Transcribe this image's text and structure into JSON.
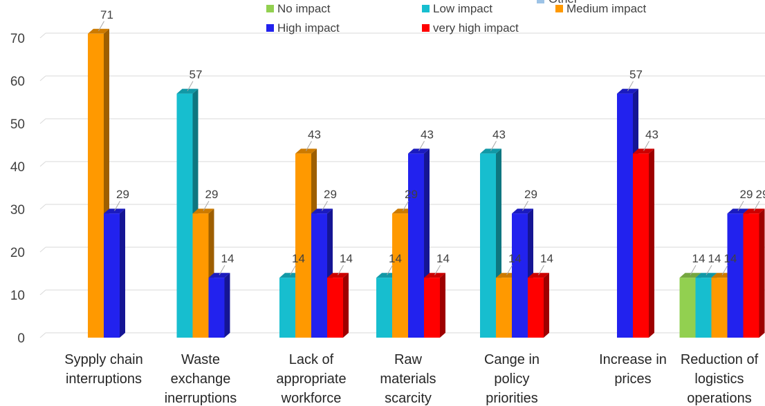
{
  "chart_data": {
    "type": "bar",
    "style": "3d-clustered-column",
    "categories": [
      [
        "Sypply chain",
        "interruptions"
      ],
      [
        "Waste",
        "exchange",
        "inerruptions"
      ],
      [
        "Lack of",
        "appropriate",
        "workforce"
      ],
      [
        "Raw",
        "materials",
        "scarcity"
      ],
      [
        "Cange in",
        "policy",
        "priorities"
      ],
      [
        "Increase in",
        "prices"
      ],
      [
        "Reduction of",
        "logistics",
        "operations"
      ]
    ],
    "series": [
      {
        "name": "No impact",
        "color": "#92d050",
        "values": [
          null,
          null,
          null,
          null,
          null,
          null,
          14
        ]
      },
      {
        "name": "Low impact",
        "color": "#17becf",
        "values": [
          null,
          57,
          14,
          14,
          43,
          null,
          14
        ]
      },
      {
        "name": "Medium impact",
        "color": "#ff9900",
        "values": [
          71,
          29,
          43,
          29,
          14,
          null,
          14
        ]
      },
      {
        "name": "High impact",
        "color": "#2222ee",
        "values": [
          29,
          14,
          29,
          43,
          29,
          57,
          29
        ]
      },
      {
        "name": "very high impact",
        "color": "#ff0000",
        "values": [
          null,
          null,
          14,
          14,
          14,
          43,
          29
        ]
      }
    ],
    "partial_legend_entry": "Other",
    "ylim": [
      0,
      70
    ],
    "yticks": [
      0,
      10,
      20,
      30,
      40,
      50,
      60,
      70
    ],
    "grid": true,
    "legend_position": "top"
  }
}
